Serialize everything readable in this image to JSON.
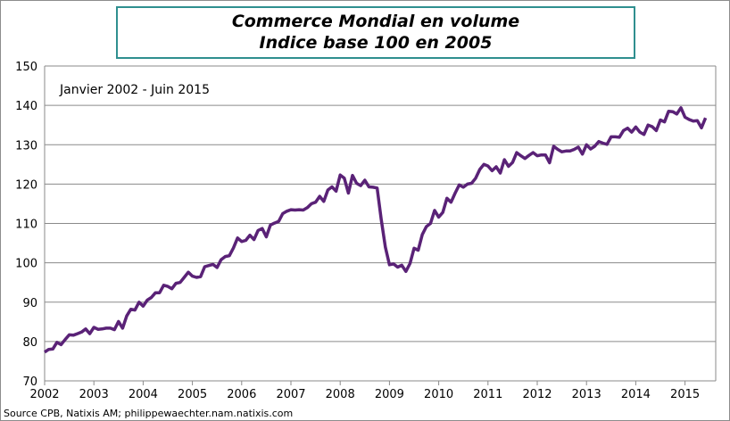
{
  "chart_data": {
    "type": "line",
    "title": "Commerce Mondial en volume",
    "subtitle": "Indice base 100 en 2005",
    "annotation": "Janvier 2002 - Juin 2015",
    "source": "Source CPB,  Natixis AM; philippewaechter.nam.natixis.com",
    "xlabel": "",
    "ylabel": "",
    "xlim": [
      2002,
      2015.5
    ],
    "ylim": [
      70,
      150
    ],
    "x_ticks": [
      "2002",
      "2003",
      "2004",
      "2005",
      "2006",
      "2007",
      "2008",
      "2009",
      "2010",
      "2011",
      "2012",
      "2013",
      "2014",
      "2015"
    ],
    "y_ticks": [
      "70",
      "80",
      "90",
      "100",
      "110",
      "120",
      "130",
      "140",
      "150"
    ],
    "grid": true,
    "legend": "none",
    "line_color": "#5a2277",
    "start": "2002-01",
    "frequency": "monthly",
    "values": [
      77.3,
      78,
      78.1,
      79.8,
      79.2,
      80.5,
      81.7,
      81.6,
      82,
      82.4,
      83.2,
      82,
      83.6,
      83.1,
      83.2,
      83.4,
      83.4,
      83,
      85.1,
      83.4,
      86.5,
      88.2,
      88,
      90,
      89,
      90.5,
      91.2,
      92.4,
      92.4,
      94.3,
      94,
      93.4,
      94.8,
      95,
      96.3,
      97.6,
      96.6,
      96.3,
      96.5,
      99,
      99.3,
      99.6,
      98.8,
      100.8,
      101.6,
      101.8,
      103.8,
      106.3,
      105.4,
      105.7,
      107,
      105.9,
      108.2,
      108.7,
      106.6,
      109.6,
      110.1,
      110.5,
      112.5,
      113.1,
      113.5,
      113.4,
      113.5,
      113.4,
      114,
      115,
      115.4,
      116.9,
      115.6,
      118.5,
      119.3,
      118.2,
      122.3,
      121.5,
      117.7,
      122.2,
      120.2,
      119.6,
      121,
      119.3,
      119.2,
      119,
      111,
      104,
      99.5,
      99.7,
      98.9,
      99.4,
      97.8,
      99.8,
      103.7,
      103.2,
      107.2,
      109.2,
      110,
      113.3,
      111.6,
      112.8,
      116.4,
      115.4,
      117.7,
      119.8,
      119.2,
      120,
      120.2,
      121.5,
      123.7,
      125,
      124.6,
      123.4,
      124.4,
      122.8,
      126.2,
      124.5,
      125.5,
      128,
      127.2,
      126.5,
      127.3,
      128,
      127.2,
      127.4,
      127.4,
      125.4,
      129.6,
      128.8,
      128.2,
      128.4,
      128.4,
      128.8,
      129.4,
      127.6,
      130,
      128.9,
      129.6,
      130.8,
      130.4,
      130.1,
      132,
      132,
      131.9,
      133.6,
      134.2,
      133.2,
      134.5,
      133.2,
      132.6,
      135,
      134.6,
      133.6,
      136.3,
      135.8,
      138.5,
      138.4,
      137.8,
      139.4,
      137,
      136.4,
      136,
      136.1,
      134.3,
      136.8
    ]
  }
}
